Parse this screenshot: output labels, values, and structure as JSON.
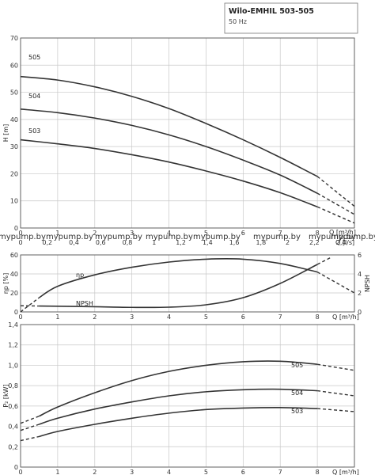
{
  "header": {
    "title": "Wilo-EMHIL 503-505",
    "frequency": "50 Hz"
  },
  "watermark": {
    "labels": [
      "mypump.by",
      "mypump.by",
      "mypump.by",
      "mypump.by",
      "mypump.by",
      "mypump.by",
      "mypump.by",
      "mypump.by"
    ]
  },
  "chart_data": [
    {
      "type": "line",
      "ylabel": "H [m]",
      "xlabel": "Q [m³/h]",
      "xlim": [
        0,
        9
      ],
      "ylim": [
        0,
        70
      ],
      "x_ticks": [
        "0",
        "1",
        "2",
        "3",
        "4",
        "5",
        "6",
        "7",
        "8"
      ],
      "y_ticks": [
        "0",
        "10",
        "20",
        "30",
        "40",
        "50",
        "60",
        "70"
      ],
      "secondary_x_axis": {
        "label": "Q [l/s]",
        "ticks": [
          "0",
          "0,2",
          "0,4",
          "0,6",
          "0,8",
          "1",
          "1,2",
          "1,4",
          "1,6",
          "1,8",
          "2",
          "2,2",
          "2,4"
        ]
      },
      "series": [
        {
          "name": "505",
          "x": [
            0,
            1,
            2,
            3,
            4,
            5,
            6,
            7,
            8
          ],
          "y": [
            55.8,
            54.5,
            52.0,
            48.5,
            44.0,
            38.5,
            32.5,
            26.0,
            19.0
          ],
          "ext_x": [
            8,
            9
          ],
          "ext_y": [
            19.0,
            8.0
          ]
        },
        {
          "name": "504",
          "x": [
            0,
            1,
            2,
            3,
            4,
            5,
            6,
            7,
            8
          ],
          "y": [
            43.8,
            42.5,
            40.5,
            37.8,
            34.3,
            30.0,
            25.0,
            19.5,
            12.8
          ],
          "ext_x": [
            8,
            9
          ],
          "ext_y": [
            12.8,
            5.0
          ]
        },
        {
          "name": "503",
          "x": [
            0,
            1,
            2,
            3,
            4,
            5,
            6,
            7,
            8
          ],
          "y": [
            32.5,
            31.0,
            29.3,
            27.0,
            24.3,
            21.0,
            17.3,
            13.0,
            7.8
          ],
          "ext_x": [
            8,
            9
          ],
          "ext_y": [
            7.8,
            1.8
          ]
        }
      ]
    },
    {
      "type": "line",
      "ylabel": "ηp [%]",
      "y2label": "NPSH",
      "xlabel": "Q [m³/h]",
      "xlim": [
        0,
        9
      ],
      "ylim": [
        0,
        60
      ],
      "y2lim": [
        0,
        6
      ],
      "x_ticks": [
        "0",
        "1",
        "2",
        "3",
        "4",
        "5",
        "6",
        "7",
        "8"
      ],
      "y_ticks": [
        "0",
        "20",
        "40",
        "60"
      ],
      "y2_ticks": [
        "0",
        "2",
        "4",
        "6"
      ],
      "series": [
        {
          "name": "ηp",
          "x": [
            0.5,
            1,
            2,
            3,
            4,
            5,
            6,
            7,
            8
          ],
          "y": [
            15,
            27,
            39,
            47,
            52.5,
            55.5,
            55.5,
            51,
            42
          ],
          "ext_pre_x": [
            0,
            0.5
          ],
          "ext_pre_y": [
            0,
            15
          ],
          "ext_x": [
            8,
            9
          ],
          "ext_y": [
            42,
            20
          ]
        },
        {
          "name": "NPSH",
          "x": [
            0.5,
            1,
            2,
            3,
            4,
            5,
            6,
            7,
            8
          ],
          "y": [
            0.62,
            0.6,
            0.55,
            0.48,
            0.5,
            0.75,
            1.5,
            3.0,
            5.0
          ],
          "ext_pre_x": [
            0,
            0.5
          ],
          "ext_pre_y": [
            0.65,
            0.62
          ],
          "ext_x": [
            8,
            8.4
          ],
          "ext_y": [
            5.0,
            5.8
          ]
        }
      ]
    },
    {
      "type": "line",
      "ylabel": "P₂ [kW]",
      "xlabel": "Q [m³/h]",
      "xlim": [
        0,
        9
      ],
      "ylim": [
        0,
        1.4
      ],
      "x_ticks": [
        "0",
        "1",
        "2",
        "3",
        "4",
        "5",
        "6",
        "7",
        "8"
      ],
      "y_ticks": [
        "0",
        "0,2",
        "0,4",
        "0,6",
        "0,8",
        "1,0",
        "1,2",
        "1,4"
      ],
      "series": [
        {
          "name": "505",
          "x": [
            0.5,
            1,
            2,
            3,
            4,
            5,
            6,
            7,
            8
          ],
          "y": [
            0.5,
            0.59,
            0.73,
            0.85,
            0.94,
            1.0,
            1.035,
            1.04,
            1.01
          ],
          "ext_pre_x": [
            0,
            0.5
          ],
          "ext_pre_y": [
            0.43,
            0.5
          ],
          "ext_x": [
            8,
            9
          ],
          "ext_y": [
            1.01,
            0.95
          ]
        },
        {
          "name": "504",
          "x": [
            0.5,
            1,
            2,
            3,
            4,
            5,
            6,
            7,
            8
          ],
          "y": [
            0.42,
            0.48,
            0.57,
            0.64,
            0.7,
            0.74,
            0.76,
            0.765,
            0.75
          ],
          "ext_pre_x": [
            0,
            0.5
          ],
          "ext_pre_y": [
            0.36,
            0.42
          ],
          "ext_x": [
            8,
            9
          ],
          "ext_y": [
            0.75,
            0.7
          ]
        },
        {
          "name": "503",
          "x": [
            0.5,
            1,
            2,
            3,
            4,
            5,
            6,
            7,
            8
          ],
          "y": [
            0.3,
            0.35,
            0.42,
            0.48,
            0.53,
            0.565,
            0.58,
            0.585,
            0.575
          ],
          "ext_pre_x": [
            0,
            0.5
          ],
          "ext_pre_y": [
            0.26,
            0.3
          ],
          "ext_x": [
            8,
            9
          ],
          "ext_y": [
            0.575,
            0.545
          ]
        }
      ]
    }
  ]
}
